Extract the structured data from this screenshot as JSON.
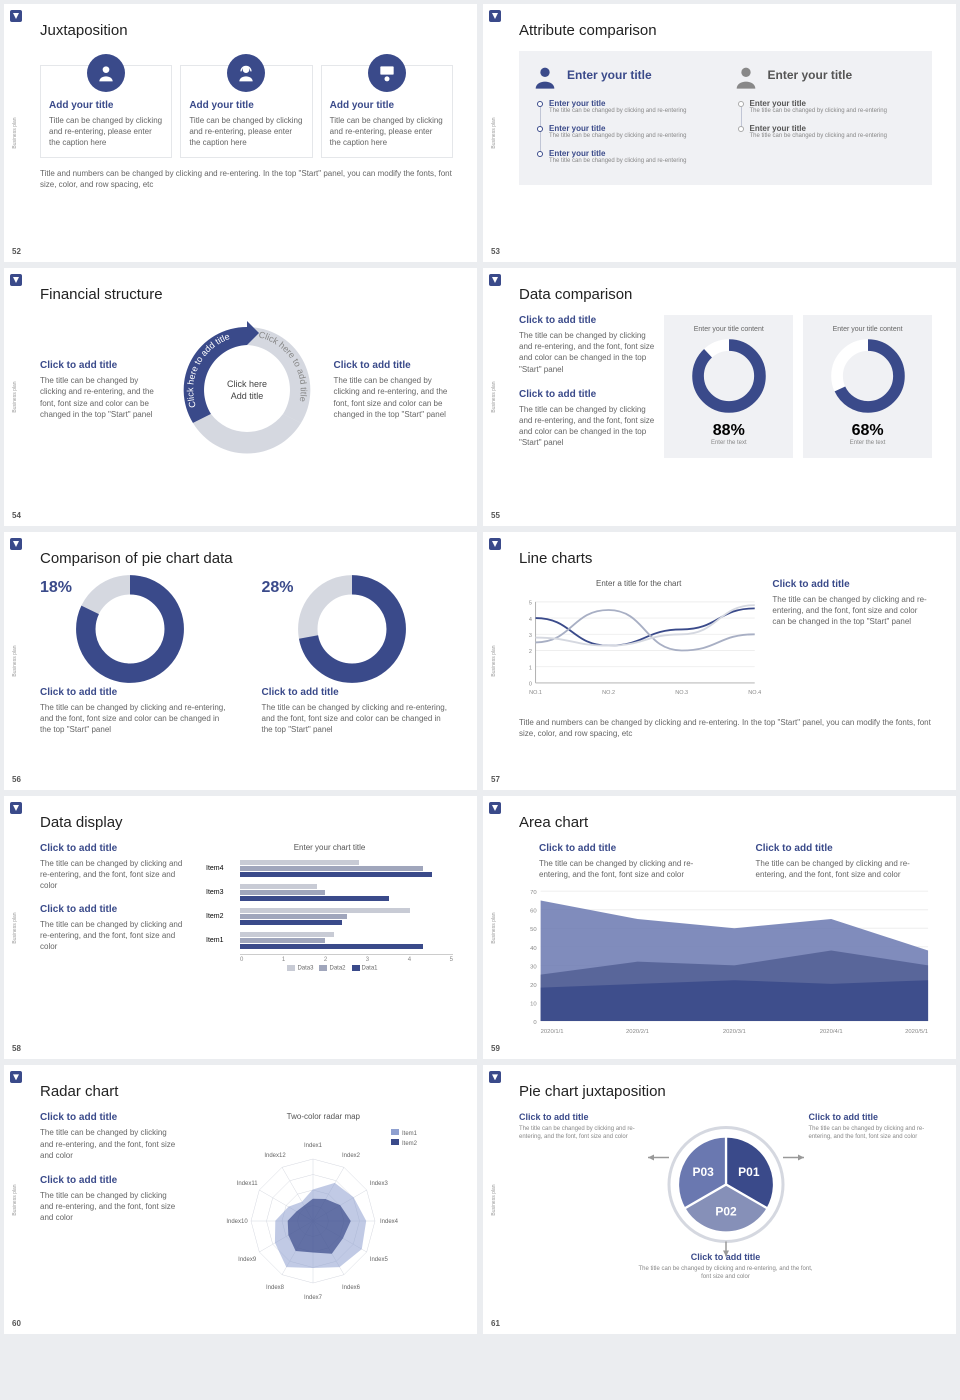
{
  "colors": {
    "primary": "#3a4a8a",
    "primaryLight": "#6a78b0",
    "grey": "#b8bdc9",
    "greyLight": "#d5d8e0",
    "greyBg": "#f0f1f4"
  },
  "sidelabel": "Business plan",
  "s52": {
    "num": "52",
    "title": "Juxtaposition",
    "cards": [
      {
        "title": "Add your title",
        "body": "Title can be changed by clicking and re-entering, please enter the caption here"
      },
      {
        "title": "Add your title",
        "body": "Title can be changed by clicking and re-entering, please enter the caption here"
      },
      {
        "title": "Add your title",
        "body": "Title can be changed by clicking and re-entering, please enter the caption here"
      }
    ],
    "footer": "Title and numbers can be changed by clicking and re-entering. In the top \"Start\" panel, you can modify the fonts, font size, color, and row spacing, etc"
  },
  "s53": {
    "num": "53",
    "title": "Attribute comparison",
    "colTitle": "Enter your title",
    "itemTitle": "Enter your title",
    "itemBody": "The title can be changed by clicking and re-entering"
  },
  "s54": {
    "num": "54",
    "title": "Financial structure",
    "sub": "Click to add title",
    "body": "The title can be changed by clicking and re-entering, and the font, font size and color can be changed in the top \"Start\" panel",
    "center1": "Click here",
    "center2": "Add title",
    "arc": "Click here to add title"
  },
  "s55": {
    "num": "55",
    "title": "Data comparison",
    "sub": "Click to add title",
    "body": "The title can be changed by clicking and re-entering, and the font, font size and color can be changed in the top \"Start\" panel",
    "boxTitle": "Enter your title content",
    "boxFooter": "Enter the text",
    "donuts": [
      {
        "pct": 88,
        "label": "88%"
      },
      {
        "pct": 68,
        "label": "68%"
      }
    ]
  },
  "s56": {
    "num": "56",
    "title": "Comparison of pie chart data",
    "sub": "Click to add title",
    "body": "The title can be changed by clicking and re-entering, and the font, font size and color can be changed in the top \"Start\" panel",
    "donuts": [
      {
        "pct": 18,
        "label": "18%"
      },
      {
        "pct": 28,
        "label": "28%"
      }
    ]
  },
  "s57": {
    "num": "57",
    "title": "Line charts",
    "chartTitle": "Enter a title for the chart",
    "sub": "Click to add title",
    "body": "The title can be changed by clicking and re-entering, and the font, font size and color can be changed in the top \"Start\" panel",
    "footer": "Title and numbers can be changed by clicking and re-entering. In the top \"Start\" panel, you can modify the fonts, font size, color, and row spacing, etc",
    "ylabels": [
      "5",
      "4",
      "3",
      "2",
      "1",
      "0"
    ],
    "xlabels": [
      "NO.1",
      "NO.2",
      "NO.3",
      "NO.4"
    ],
    "series": [
      {
        "color": "#3a4a8a",
        "points": [
          4.0,
          2.3,
          3.3,
          4.6
        ]
      },
      {
        "color": "#a8afc4",
        "points": [
          2.5,
          4.5,
          2.0,
          3.0
        ]
      },
      {
        "color": "#d5d8e0",
        "points": [
          2.8,
          2.3,
          3.0,
          4.8
        ]
      }
    ]
  },
  "s58": {
    "num": "58",
    "title": "Data display",
    "sub": "Click to add title",
    "body": "The title can be changed by clicking and re-entering, and the font, font size and color",
    "chartTitle": "Enter your chart title",
    "categories": [
      "Item4",
      "Item3",
      "Item2",
      "Item1"
    ],
    "xlabels": [
      "0",
      "1",
      "2",
      "3",
      "4",
      "5"
    ],
    "legend": [
      "Data3",
      "Data2",
      "Data1"
    ],
    "colors": [
      "#c8cbd5",
      "#a0a6bc",
      "#3a4a8a"
    ],
    "data": [
      [
        2.8,
        4.3,
        4.5
      ],
      [
        1.8,
        2.0,
        3.5
      ],
      [
        4.0,
        2.5,
        2.4
      ],
      [
        2.2,
        2.0,
        4.3
      ]
    ]
  },
  "s59": {
    "num": "59",
    "title": "Area chart",
    "sub": "Click to add title",
    "body": "The title can be changed by clicking and re-entering, and the font, font size and color",
    "xlabels": [
      "2020/1/1",
      "2020/2/1",
      "2020/3/1",
      "2020/4/1",
      "2020/5/1"
    ],
    "ylabels": [
      "70",
      "60",
      "50",
      "40",
      "30",
      "20",
      "10",
      "0"
    ],
    "series": [
      {
        "color": "#6a78b0",
        "points": [
          65,
          55,
          50,
          55,
          38
        ]
      },
      {
        "color": "#525f94",
        "points": [
          25,
          32,
          30,
          38,
          30
        ]
      },
      {
        "color": "#3a4a8a",
        "points": [
          18,
          20,
          22,
          20,
          22
        ]
      }
    ]
  },
  "s60": {
    "num": "60",
    "title": "Radar chart",
    "sub": "Click to add title",
    "body": "The title can be changed by clicking and re-entering, and the font, font size and color",
    "chartTitle": "Two-color radar map",
    "legend": [
      "Item1",
      "Item2"
    ],
    "axes": [
      "Index1",
      "Index2",
      "Index3",
      "Index4",
      "Index5",
      "Index6",
      "Index7",
      "Index8",
      "Index9",
      "Index10",
      "Index11",
      "Index12"
    ],
    "series": [
      {
        "color": "#8fa0d0",
        "vals": [
          0.5,
          0.7,
          0.75,
          0.85,
          0.9,
          0.85,
          0.75,
          0.85,
          0.7,
          0.6,
          0.45,
          0.35
        ]
      },
      {
        "color": "#3a4a8a",
        "vals": [
          0.35,
          0.4,
          0.5,
          0.6,
          0.55,
          0.6,
          0.5,
          0.55,
          0.45,
          0.4,
          0.3,
          0.28
        ]
      }
    ]
  },
  "s61": {
    "num": "61",
    "title": "Pie chart juxtaposition",
    "sub": "Click to add title",
    "body": "The title can be changed by clicking and re-entering, and the font, font size and color",
    "slices": [
      "P01",
      "P02",
      "P03"
    ]
  }
}
